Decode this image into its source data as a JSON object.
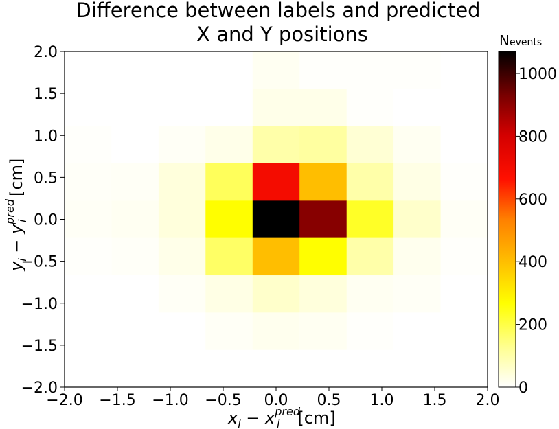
{
  "chart_data": {
    "type": "heatmap",
    "title_lines": [
      "Difference between labels and predicted",
      "X and Y positions"
    ],
    "xlabel_main": "x",
    "xlabel_sub": "i",
    "xlabel_minus": " − ",
    "xlabel_main2": "x",
    "xlabel_sub2": "i",
    "xlabel_sup2": "pred",
    "xlabel_unit": "[cm]",
    "ylabel_main": "y",
    "ylabel_sub": "i",
    "ylabel_minus": " − ",
    "ylabel_main2": "y",
    "ylabel_sub2": "i",
    "ylabel_sup2": "pred",
    "ylabel_unit": " [cm]",
    "xlim": [
      -2.0,
      2.0
    ],
    "ylim": [
      -2.0,
      2.0
    ],
    "xticks": [
      -2.0,
      -1.5,
      -1.0,
      -0.5,
      0.0,
      0.5,
      1.0,
      1.5,
      2.0
    ],
    "xtick_labels": [
      "−2.0",
      "−1.5",
      "−1.0",
      "−0.5",
      "0.0",
      "0.5",
      "1.0",
      "1.5",
      "2.0"
    ],
    "yticks": [
      2.0,
      1.5,
      1.0,
      0.5,
      0.0,
      -0.5,
      -1.0,
      -1.5,
      -2.0
    ],
    "ytick_labels": [
      "2.0",
      "1.5",
      "1.0",
      "0.5",
      "0.0",
      "−0.5",
      "−1.0",
      "−1.5",
      "−2.0"
    ],
    "bins": 9,
    "x_bin_edges": [
      -2.0,
      -1.556,
      -1.111,
      -0.667,
      -0.222,
      0.222,
      0.667,
      1.111,
      1.556,
      2.0
    ],
    "y_bin_edges": [
      -2.0,
      -1.556,
      -1.111,
      -0.667,
      -0.222,
      0.222,
      0.667,
      1.111,
      1.556,
      2.0
    ],
    "counts_top_to_bottom": [
      [
        0,
        0,
        0,
        0,
        15,
        5,
        5,
        5,
        0
      ],
      [
        0,
        0,
        0,
        0,
        25,
        25,
        5,
        0,
        0
      ],
      [
        5,
        0,
        10,
        25,
        100,
        110,
        50,
        15,
        0
      ],
      [
        8,
        10,
        40,
        180,
        700,
        400,
        100,
        30,
        5
      ],
      [
        10,
        15,
        40,
        270,
        1070,
        910,
        230,
        60,
        10
      ],
      [
        5,
        8,
        25,
        170,
        400,
        270,
        100,
        20,
        5
      ],
      [
        0,
        0,
        10,
        30,
        60,
        40,
        15,
        10,
        0
      ],
      [
        0,
        0,
        0,
        10,
        20,
        15,
        5,
        0,
        0
      ],
      [
        0,
        0,
        0,
        0,
        0,
        0,
        0,
        0,
        0
      ]
    ],
    "colormap": "hot_r",
    "colorbar": {
      "label_main": "N",
      "label_sub": "events",
      "range": [
        0,
        1070
      ],
      "ticks": [
        0,
        200,
        400,
        600,
        800,
        1000
      ],
      "tick_labels": [
        "0",
        "200",
        "400",
        "600",
        "800",
        "1000"
      ]
    }
  }
}
